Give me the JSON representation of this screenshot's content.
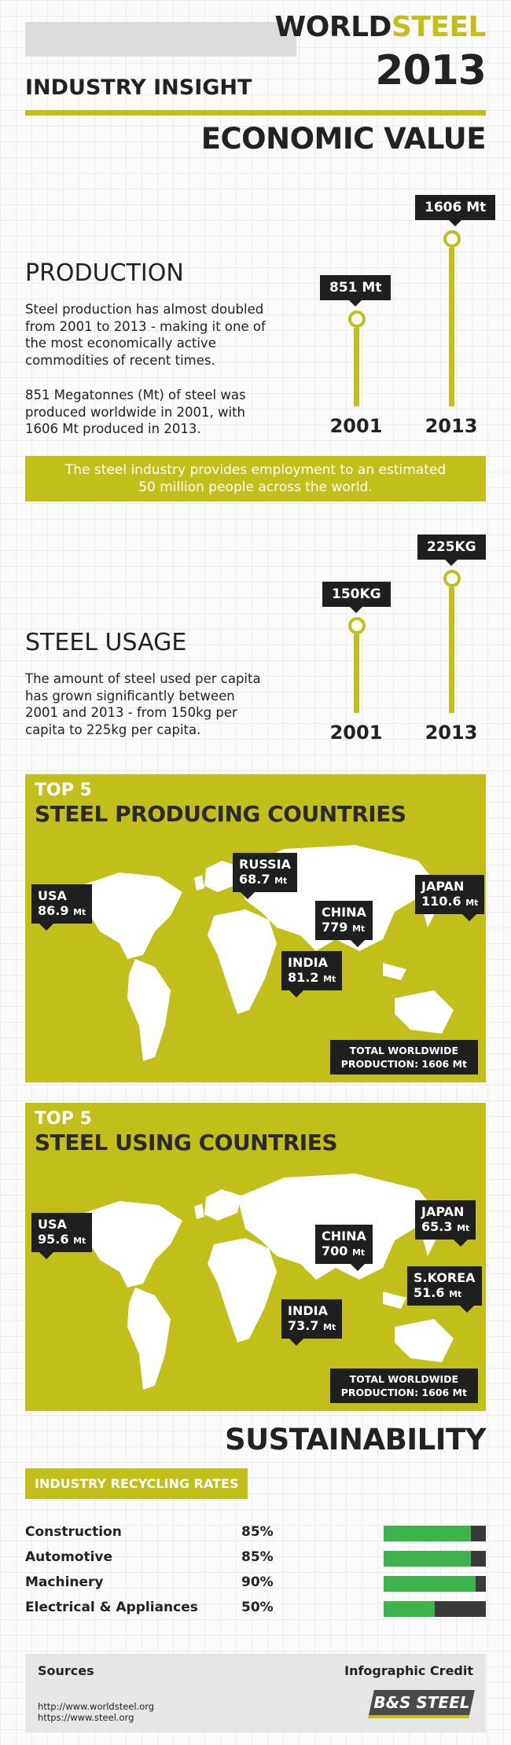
{
  "header": {
    "brand_world": "WORLD",
    "brand_steel": "STEEL",
    "year": "2013",
    "subtitle": "INDUSTRY INSIGHT"
  },
  "economic": {
    "title": "ECONOMIC VALUE",
    "production": {
      "heading": "PRODUCTION",
      "para1": "Steel production has almost doubled from 2001 to 2013 - making it one of the most economically active commodities of recent times.",
      "para2": "851 Megatonnes (Mt) of steel was produced worldwide in 2001, with 1606 Mt produced in 2013.",
      "value_2001": "851 Mt",
      "value_2013": "1606 Mt",
      "year_2001": "2001",
      "year_2013": "2013"
    },
    "banner_line1": "The steel industry provides employment to an estimated",
    "banner_line2": "50 million people across the world.",
    "usage": {
      "heading": "STEEL USAGE",
      "para": "The amount of steel used per capita has grown significantly between 2001 and 2013 - from 150kg per capita to 225kg per capita.",
      "value_2001": "150KG",
      "value_2013": "225KG",
      "year_2001": "2001",
      "year_2013": "2013"
    }
  },
  "producing": {
    "top5": "TOP 5",
    "title": "STEEL PRODUCING COUNTRIES",
    "countries": [
      {
        "name": "USA",
        "value": "86.9",
        "unit": "Mt"
      },
      {
        "name": "RUSSIA",
        "value": "68.7",
        "unit": "Mt"
      },
      {
        "name": "CHINA",
        "value": "779",
        "unit": "Mt"
      },
      {
        "name": "JAPAN",
        "value": "110.6",
        "unit": "Mt"
      },
      {
        "name": "INDIA",
        "value": "81.2",
        "unit": "Mt"
      }
    ],
    "total_line1": "TOTAL WORLDWIDE",
    "total_line2": "PRODUCTION: 1606 Mt"
  },
  "using": {
    "top5": "TOP 5",
    "title": "STEEL USING COUNTRIES",
    "countries": [
      {
        "name": "USA",
        "value": "95.6",
        "unit": "Mt"
      },
      {
        "name": "CHINA",
        "value": "700",
        "unit": "Mt"
      },
      {
        "name": "JAPAN",
        "value": "65.3",
        "unit": "Mt"
      },
      {
        "name": "S.KOREA",
        "value": "51.6",
        "unit": "Mt"
      },
      {
        "name": "INDIA",
        "value": "73.7",
        "unit": "Mt"
      }
    ],
    "total_line1": "TOTAL WORLDWIDE",
    "total_line2": "PRODUCTION: 1606 Mt"
  },
  "sustainability": {
    "title": "SUSTAINABILITY",
    "recycling_heading": "INDUSTRY RECYCLING RATES",
    "rates": [
      {
        "name": "Construction",
        "pct_label": "85%",
        "pct": 85
      },
      {
        "name": "Automotive",
        "pct_label": "85%",
        "pct": 85
      },
      {
        "name": "Machinery",
        "pct_label": "90%",
        "pct": 90
      },
      {
        "name": "Electrical & Appliances",
        "pct_label": "50%",
        "pct": 50
      }
    ],
    "colors": {
      "bar_fill": "#3cb44b",
      "bar_track": "#3a3a3a",
      "accent": "#c3bf1a"
    }
  },
  "footer": {
    "sources_title": "Sources",
    "url1": "http://www.worldsteel.org",
    "url2": "https://www.steel.org",
    "credit_title": "Infographic Credit",
    "logo_text": "B&S STEEL"
  }
}
